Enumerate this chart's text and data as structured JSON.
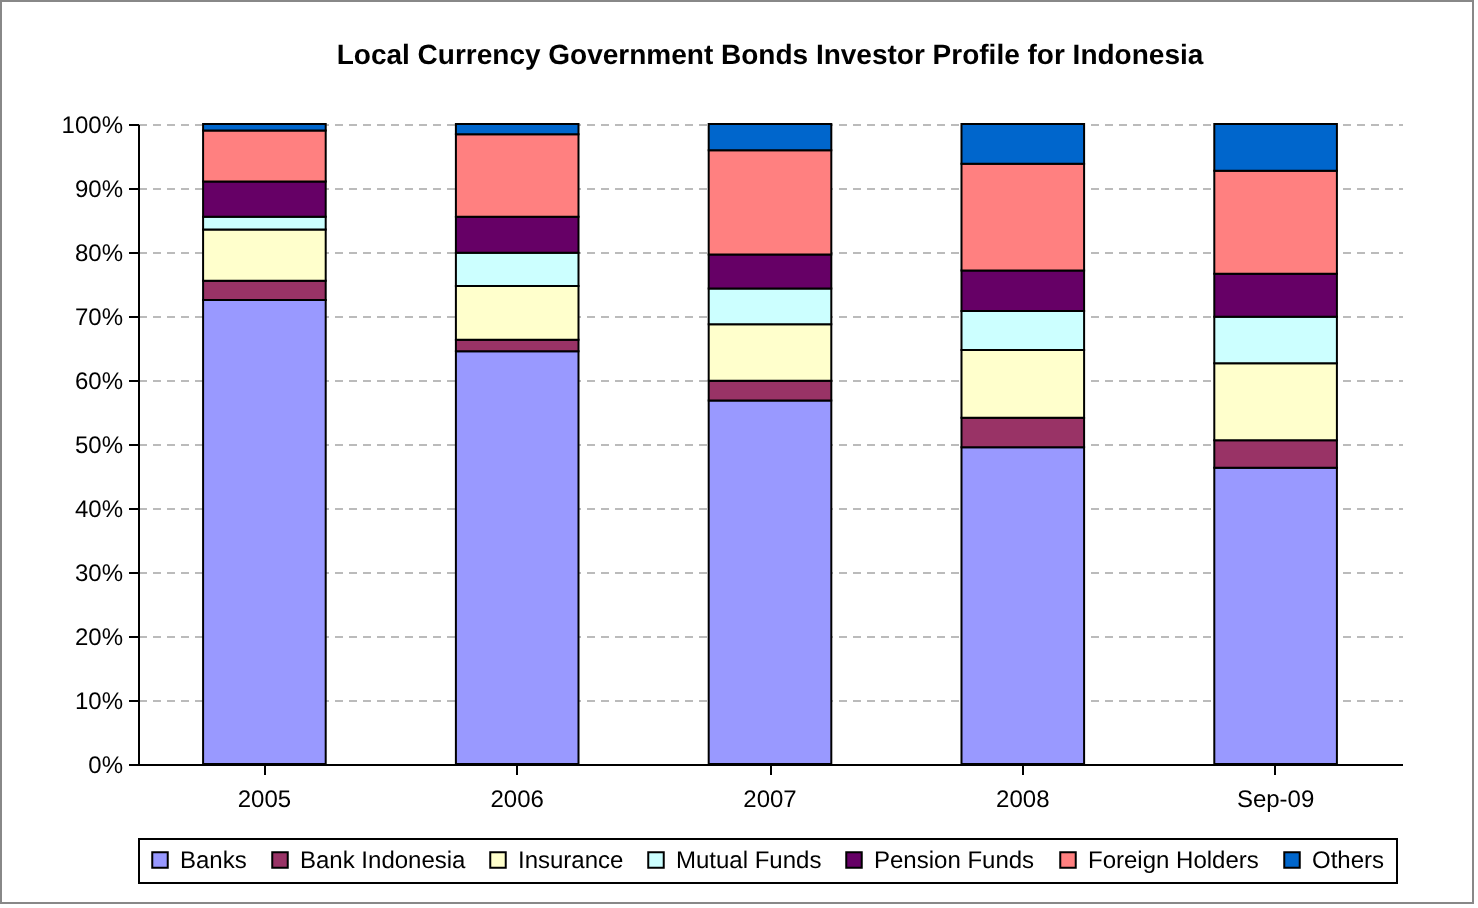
{
  "chart_data": {
    "type": "bar",
    "title": "Local Currency Government Bonds Investor Profile for Indonesia",
    "stacked": true,
    "categories": [
      "2005",
      "2006",
      "2007",
      "2008",
      "Sep-09"
    ],
    "series": [
      {
        "name": "Banks",
        "color": "#9999ff",
        "values": [
          72.5,
          64.5,
          56.8,
          49.5,
          46.3
        ]
      },
      {
        "name": "Bank Indonesia",
        "color": "#993366",
        "values": [
          3,
          1.8,
          3.1,
          4.6,
          4.3
        ]
      },
      {
        "name": "Insurance",
        "color": "#ffffcc",
        "values": [
          8,
          8.4,
          8.8,
          10.6,
          12
        ]
      },
      {
        "name": "Mutual Funds",
        "color": "#ccffff",
        "values": [
          2,
          5.2,
          5.6,
          6.1,
          7.3
        ]
      },
      {
        "name": "Pension Funds",
        "color": "#660066",
        "values": [
          5.5,
          5.6,
          5.3,
          6.3,
          6.7
        ]
      },
      {
        "name": "Foreign Holders",
        "color": "#ff8080",
        "values": [
          8,
          12.9,
          16.3,
          16.7,
          16.1
        ]
      },
      {
        "name": "Others",
        "color": "#0066cc",
        "values": [
          1,
          1.6,
          4.1,
          6.2,
          7.3
        ]
      }
    ],
    "ylim": [
      0,
      100
    ],
    "yticks": [
      {
        "value": 0,
        "label": "0%"
      },
      {
        "value": 10,
        "label": "10%"
      },
      {
        "value": 20,
        "label": "20%"
      },
      {
        "value": 30,
        "label": "30%"
      },
      {
        "value": 40,
        "label": "40%"
      },
      {
        "value": 50,
        "label": "50%"
      },
      {
        "value": 60,
        "label": "60%"
      },
      {
        "value": 70,
        "label": "70%"
      },
      {
        "value": 80,
        "label": "80%"
      },
      {
        "value": 90,
        "label": "90%"
      },
      {
        "value": 100,
        "label": "100%"
      }
    ],
    "grid": "y",
    "legend": "bottom"
  }
}
